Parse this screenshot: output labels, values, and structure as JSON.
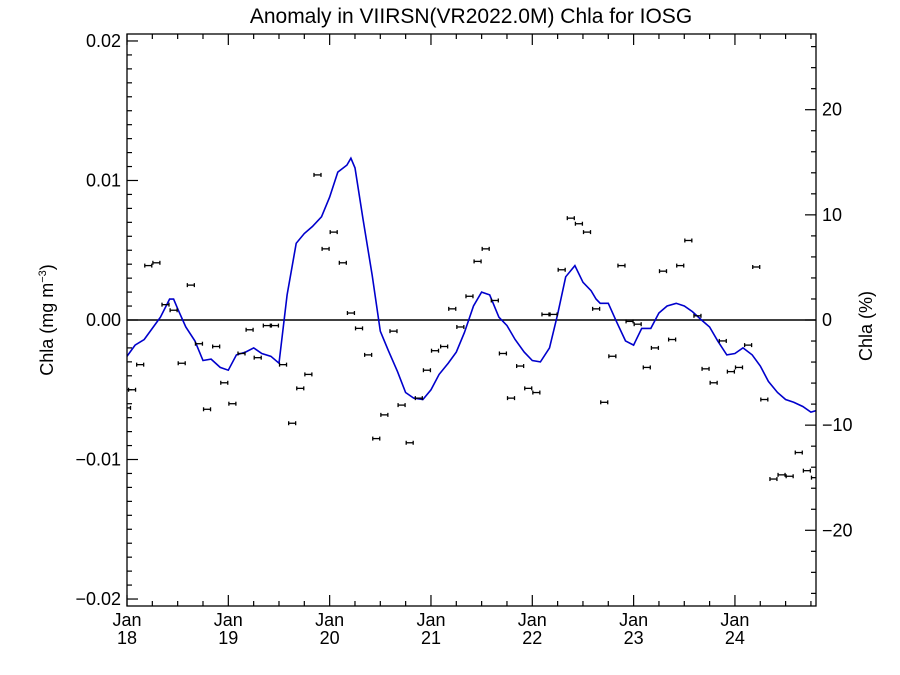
{
  "chart_data": {
    "type": "line",
    "title": "Anomaly in VIIRSN(VR2022.0M) Chla for IOSG",
    "ylabel_left": "Chla (mg m",
    "ylabel_left_sup": "−3",
    "ylabel_left_close": ")",
    "ylabel_right": "Chla (%)",
    "xlim": [
      2018.0,
      2024.8
    ],
    "ylim": [
      -0.0205,
      0.0205
    ],
    "ylim_right": [
      -27.2,
      27.2
    ],
    "grid": false,
    "x_ticks": [
      {
        "x": 2018.0,
        "month": "Jan",
        "year": "18"
      },
      {
        "x": 2019.0,
        "month": "Jan",
        "year": "19"
      },
      {
        "x": 2020.0,
        "month": "Jan",
        "year": "20"
      },
      {
        "x": 2021.0,
        "month": "Jan",
        "year": "21"
      },
      {
        "x": 2022.0,
        "month": "Jan",
        "year": "22"
      },
      {
        "x": 2023.0,
        "month": "Jan",
        "year": "23"
      },
      {
        "x": 2024.0,
        "month": "Jan",
        "year": "24"
      }
    ],
    "y_ticks_left": [
      {
        "value": 0.02,
        "label": "0.02"
      },
      {
        "value": 0.01,
        "label": "0.01"
      },
      {
        "value": 0.0,
        "label": "0.00"
      },
      {
        "value": -0.01,
        "label": "−0.01"
      },
      {
        "value": -0.02,
        "label": "−0.02"
      }
    ],
    "y_ticks_right": [
      {
        "value": 20,
        "label": "20"
      },
      {
        "value": 10,
        "label": "10"
      },
      {
        "value": 0,
        "label": "0"
      },
      {
        "value": -10,
        "label": "−10"
      },
      {
        "value": -20,
        "label": "−20"
      }
    ],
    "line_series": {
      "color": "#0000cc",
      "x": [
        2018.0,
        2018.08,
        2018.17,
        2018.25,
        2018.33,
        2018.42,
        2018.46,
        2018.5,
        2018.58,
        2018.67,
        2018.75,
        2018.83,
        2018.92,
        2019.0,
        2019.08,
        2019.17,
        2019.25,
        2019.33,
        2019.42,
        2019.5,
        2019.58,
        2019.67,
        2019.75,
        2019.83,
        2019.92,
        2020.0,
        2020.08,
        2020.17,
        2020.21,
        2020.25,
        2020.33,
        2020.42,
        2020.5,
        2020.58,
        2020.67,
        2020.75,
        2020.83,
        2020.92,
        2021.0,
        2021.08,
        2021.17,
        2021.25,
        2021.33,
        2021.42,
        2021.5,
        2021.58,
        2021.67,
        2021.75,
        2021.83,
        2021.92,
        2022.0,
        2022.08,
        2022.17,
        2022.25,
        2022.33,
        2022.42,
        2022.5,
        2022.58,
        2022.63,
        2022.67,
        2022.75,
        2022.83,
        2022.92,
        2023.0,
        2023.08,
        2023.17,
        2023.25,
        2023.33,
        2023.42,
        2023.5,
        2023.58,
        2023.67,
        2023.75,
        2023.83,
        2023.92,
        2024.0,
        2024.08,
        2024.17,
        2024.25,
        2024.33,
        2024.42,
        2024.5,
        2024.58,
        2024.67,
        2024.75,
        2024.8
      ],
      "y": [
        -0.0026,
        -0.0018,
        -0.0014,
        -0.0006,
        0.0002,
        0.0015,
        0.0015,
        0.0008,
        -0.0005,
        -0.0015,
        -0.0029,
        -0.0028,
        -0.0034,
        -0.0036,
        -0.0025,
        -0.0023,
        -0.002,
        -0.0024,
        -0.0026,
        -0.0031,
        0.0018,
        0.0055,
        0.0062,
        0.0067,
        0.0074,
        0.0088,
        0.0106,
        0.0111,
        0.0116,
        0.0109,
        0.0072,
        0.0032,
        -0.0008,
        -0.0022,
        -0.0037,
        -0.0052,
        -0.0056,
        -0.0057,
        -0.005,
        -0.0039,
        -0.0031,
        -0.0023,
        -0.0009,
        0.001,
        0.002,
        0.0018,
        0.0002,
        -0.0004,
        -0.0014,
        -0.0023,
        -0.0029,
        -0.003,
        -0.002,
        0.0004,
        0.0031,
        0.0039,
        0.0027,
        0.0021,
        0.0015,
        0.0012,
        0.0012,
        -0.0001,
        -0.0015,
        -0.0018,
        -0.0006,
        -0.0006,
        0.0005,
        0.001,
        0.0012,
        0.001,
        0.0006,
        0.0,
        -0.0005,
        -0.0015,
        -0.0025,
        -0.0024,
        -0.002,
        -0.0025,
        -0.0033,
        -0.0044,
        -0.0052,
        -0.0057,
        -0.0059,
        -0.0062,
        -0.0066,
        -0.0065
      ]
    },
    "points": {
      "x": [
        2018.0,
        2018.05,
        2018.13,
        2018.21,
        2018.29,
        2018.38,
        2018.46,
        2018.54,
        2018.63,
        2018.71,
        2018.79,
        2018.88,
        2018.96,
        2019.04,
        2019.13,
        2019.21,
        2019.29,
        2019.38,
        2019.46,
        2019.54,
        2019.63,
        2019.71,
        2019.79,
        2019.88,
        2019.96,
        2020.04,
        2020.13,
        2020.21,
        2020.29,
        2020.38,
        2020.46,
        2020.54,
        2020.63,
        2020.71,
        2020.79,
        2020.88,
        2020.96,
        2021.04,
        2021.13,
        2021.21,
        2021.29,
        2021.38,
        2021.46,
        2021.54,
        2021.63,
        2021.71,
        2021.79,
        2021.88,
        2021.96,
        2022.04,
        2022.13,
        2022.21,
        2022.29,
        2022.38,
        2022.46,
        2022.54,
        2022.63,
        2022.71,
        2022.79,
        2022.88,
        2022.96,
        2023.04,
        2023.13,
        2023.21,
        2023.29,
        2023.38,
        2023.46,
        2023.54,
        2023.63,
        2023.71,
        2023.79,
        2023.88,
        2023.96,
        2024.04,
        2024.13,
        2024.21,
        2024.29,
        2024.38,
        2024.46,
        2024.54,
        2024.63,
        2024.71,
        2024.79
      ],
      "y": [
        -0.0063,
        -0.005,
        -0.0032,
        0.0039,
        0.0041,
        0.0011,
        0.0007,
        -0.0031,
        0.0025,
        -0.0017,
        -0.0064,
        -0.0019,
        -0.0045,
        -0.006,
        -0.0024,
        -0.0007,
        -0.0027,
        -0.0004,
        -0.0004,
        -0.0032,
        -0.0074,
        -0.0049,
        -0.0039,
        0.0104,
        0.0051,
        0.0063,
        0.0041,
        0.0005,
        -0.0006,
        -0.0025,
        -0.0085,
        -0.0068,
        -0.0008,
        -0.0061,
        -0.0088,
        -0.0056,
        -0.0036,
        -0.0022,
        -0.0019,
        0.0008,
        -0.0005,
        0.0017,
        0.0042,
        0.0051,
        0.0014,
        -0.0024,
        -0.0056,
        -0.0033,
        -0.0049,
        -0.0052,
        0.0004,
        0.0004,
        0.0036,
        0.0073,
        0.0069,
        0.0063,
        0.0008,
        -0.0059,
        -0.0026,
        0.0039,
        -0.0001,
        -0.0003,
        -0.0034,
        -0.002,
        0.0035,
        -0.0014,
        0.0039,
        0.0057,
        0.0003,
        -0.0035,
        -0.0045,
        -0.0015,
        -0.0037,
        -0.0034,
        -0.0018,
        0.0038,
        -0.0057,
        -0.0114,
        -0.0111,
        -0.0112,
        -0.0095,
        -0.0108,
        -0.0113
      ]
    }
  }
}
